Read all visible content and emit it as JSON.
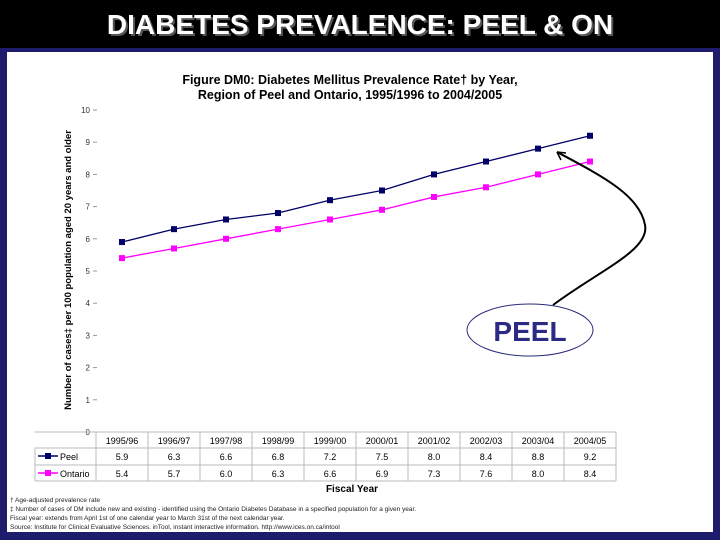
{
  "slide_title": "DIABETES PREVALENCE: PEEL & ON",
  "callout": "PEEL",
  "chart_data": {
    "type": "line",
    "title_line1": "Figure DM0: Diabetes Mellitus Prevalence Rate† by Year,",
    "title_line2": "Region of Peel and Ontario, 1995/1996 to 2004/2005",
    "xlabel": "Fiscal Year",
    "ylabel": "Number of cases‡ per 100 population aged 20 years and older",
    "ylim": [
      0,
      10
    ],
    "yticks": [
      "0",
      "1",
      "2",
      "3",
      "4",
      "5",
      "6",
      "7",
      "8",
      "9",
      "10"
    ],
    "categories": [
      "1995/96",
      "1996/97",
      "1997/98",
      "1998/99",
      "1999/00",
      "2000/01",
      "2001/02",
      "2002/03",
      "2003/04",
      "2004/05"
    ],
    "series": [
      {
        "name": "Peel",
        "color": "#000066",
        "values": [
          5.9,
          6.3,
          6.6,
          6.8,
          7.2,
          7.5,
          8.0,
          8.4,
          8.8,
          9.2
        ],
        "labels": [
          "5.9",
          "6.3",
          "6.6",
          "6.8",
          "7.2",
          "7.5",
          "8.0",
          "8.4",
          "8.8",
          "9.2"
        ]
      },
      {
        "name": "Ontario",
        "color": "#ff00ff",
        "values": [
          5.4,
          5.7,
          6.0,
          6.3,
          6.6,
          6.9,
          7.3,
          7.6,
          8.0,
          8.4
        ],
        "labels": [
          "5.4",
          "5.7",
          "6.0",
          "6.3",
          "6.6",
          "6.9",
          "7.3",
          "7.6",
          "8.0",
          "8.4"
        ]
      }
    ],
    "legend": "data-table"
  },
  "footnotes": [
    "† Age-adjusted prevalence rate",
    "‡ Number of cases of DM include new and existing - identified using the Ontario Diabetes Database in a specified population for a given year.",
    "Fiscal year: extends from April 1st of one calendar year to March 31st of the next calendar year.",
    "Source: Institute for Clinical Evaluative Sciences.  inTool, instant interactive information. http://www.ices.on.ca/intool"
  ]
}
